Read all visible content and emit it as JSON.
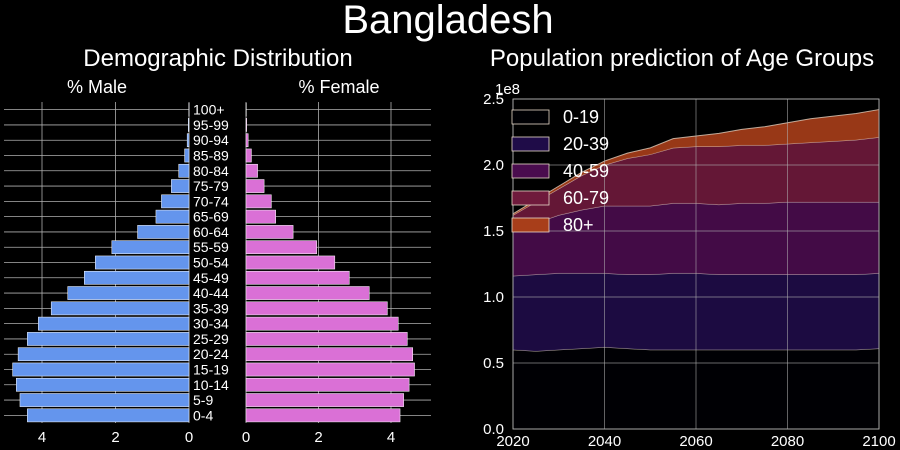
{
  "figure_title": "Bangladesh",
  "colors": {
    "background": "#000000",
    "grid": "#b0b0b0",
    "male_bar": "#6495ed",
    "female_bar": "#da70d6",
    "area_colors": [
      "#000004",
      "#1f0c48",
      "#4a0c4e",
      "#6f1a3c",
      "#a83e1a"
    ],
    "area_edge": "#e8d9c8"
  },
  "chart_data": [
    {
      "type": "bar",
      "orientation": "horizontal",
      "panel": "Demographic Distribution",
      "title": "Demographic Distribution",
      "male_label": "% Male",
      "female_label": "% Female",
      "categories": [
        "0-4",
        "5-9",
        "10-14",
        "15-19",
        "20-24",
        "25-29",
        "30-34",
        "35-39",
        "40-44",
        "45-49",
        "50-54",
        "55-59",
        "60-64",
        "65-69",
        "70-74",
        "75-79",
        "80-84",
        "85-89",
        "90-94",
        "95-99",
        "100+"
      ],
      "series": [
        {
          "name": "% Male",
          "values": [
            4.4,
            4.6,
            4.7,
            4.8,
            4.65,
            4.4,
            4.1,
            3.75,
            3.3,
            2.85,
            2.55,
            2.1,
            1.4,
            0.9,
            0.75,
            0.48,
            0.28,
            0.12,
            0.05,
            0.02,
            0.005
          ]
        },
        {
          "name": "% Female",
          "values": [
            4.25,
            4.35,
            4.5,
            4.65,
            4.6,
            4.45,
            4.2,
            3.9,
            3.4,
            2.85,
            2.45,
            1.95,
            1.3,
            0.82,
            0.7,
            0.5,
            0.32,
            0.15,
            0.06,
            0.02,
            0.005
          ]
        }
      ],
      "xticks": [
        "4",
        "2",
        "0",
        "2",
        "4"
      ],
      "xlim_male": [
        5,
        0
      ],
      "xlim_female": [
        0,
        5
      ],
      "grid": true
    },
    {
      "type": "area",
      "stacked": true,
      "title": "Population prediction of Age Groups",
      "x": [
        2020,
        2025,
        2030,
        2035,
        2040,
        2045,
        2050,
        2055,
        2060,
        2065,
        2070,
        2075,
        2080,
        2085,
        2090,
        2095,
        2100
      ],
      "series": [
        {
          "name": "0-19",
          "values": [
            0.6,
            0.59,
            0.6,
            0.61,
            0.62,
            0.61,
            0.6,
            0.6,
            0.6,
            0.6,
            0.6,
            0.6,
            0.6,
            0.6,
            0.6,
            0.6,
            0.61
          ]
        },
        {
          "name": "20-39",
          "values": [
            0.56,
            0.58,
            0.58,
            0.57,
            0.56,
            0.56,
            0.57,
            0.58,
            0.58,
            0.57,
            0.57,
            0.57,
            0.57,
            0.57,
            0.57,
            0.57,
            0.57
          ]
        },
        {
          "name": "40-59",
          "values": [
            0.34,
            0.39,
            0.44,
            0.48,
            0.51,
            0.52,
            0.52,
            0.53,
            0.53,
            0.53,
            0.54,
            0.54,
            0.55,
            0.55,
            0.55,
            0.55,
            0.54
          ]
        },
        {
          "name": "60-79",
          "values": [
            0.12,
            0.16,
            0.2,
            0.26,
            0.31,
            0.36,
            0.39,
            0.42,
            0.43,
            0.44,
            0.44,
            0.44,
            0.44,
            0.45,
            0.46,
            0.47,
            0.49
          ]
        },
        {
          "name": "80+",
          "values": [
            0.01,
            0.015,
            0.02,
            0.025,
            0.03,
            0.04,
            0.05,
            0.07,
            0.08,
            0.1,
            0.12,
            0.14,
            0.16,
            0.18,
            0.19,
            0.2,
            0.21
          ]
        }
      ],
      "y_multiplier": "1e8",
      "xlim": [
        2020,
        2100
      ],
      "ylim": [
        0,
        2.5
      ],
      "xticks": [
        2020,
        2040,
        2060,
        2080,
        2100
      ],
      "yticks": [
        "0.0",
        "0.5",
        "1.0",
        "1.5",
        "2.0",
        "2.5"
      ],
      "legend": "top-left",
      "grid": true
    }
  ]
}
